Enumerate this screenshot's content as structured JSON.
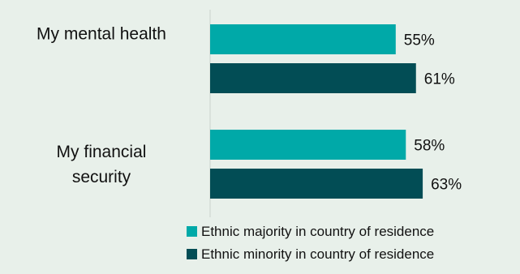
{
  "chart_data": {
    "type": "bar",
    "orientation": "horizontal",
    "categories": [
      [
        "My mental health"
      ],
      [
        "My financial",
        "security"
      ]
    ],
    "series": [
      {
        "name": "Ethnic majority in country of residence",
        "values": [
          55,
          58
        ],
        "labels": [
          "55%",
          "58%"
        ],
        "color": "#00a9a8"
      },
      {
        "name": "Ethnic minority in country of residence",
        "values": [
          61,
          63
        ],
        "labels": [
          "61%",
          "63%"
        ],
        "color": "#024d55"
      }
    ],
    "xlim": [
      0,
      72
    ],
    "grid": false,
    "legend": "bottom"
  }
}
